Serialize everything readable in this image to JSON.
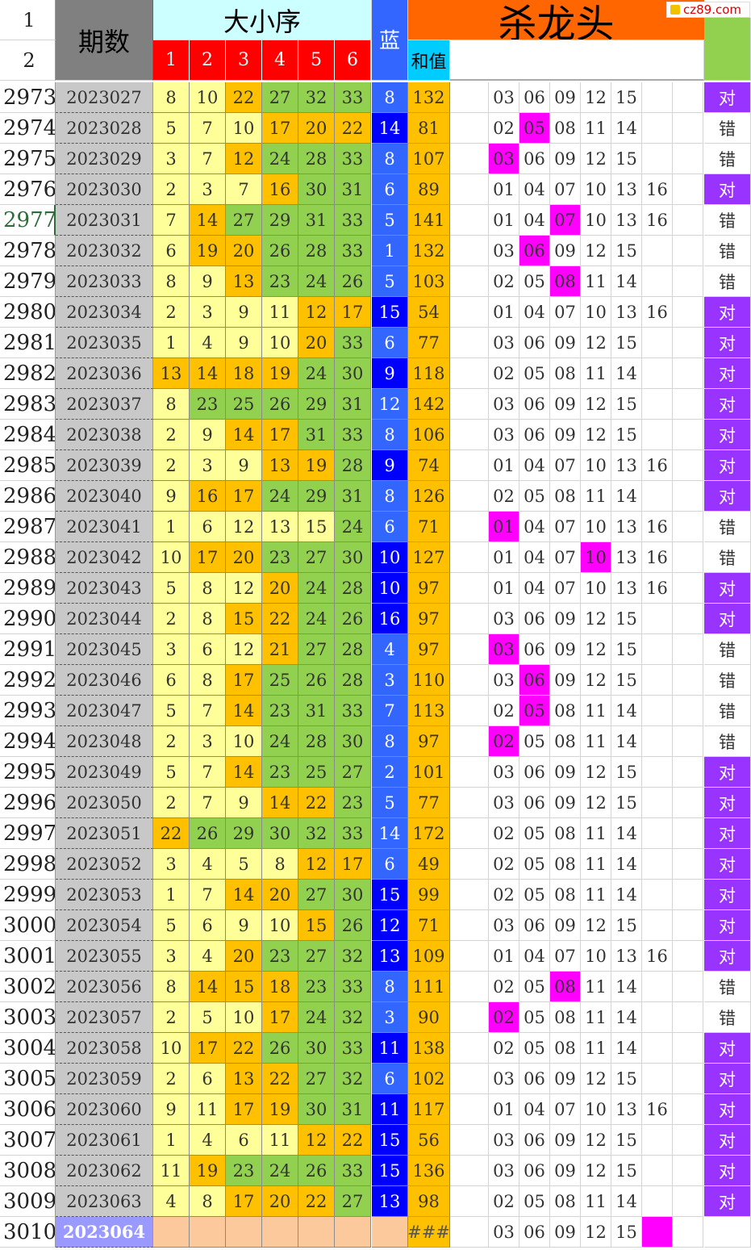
{
  "logo": {
    "text": "cz89.com"
  },
  "header": {
    "row1": "1",
    "row2": "2",
    "period": "期数",
    "order": "大小序",
    "positions": [
      "1",
      "2",
      "3",
      "4",
      "5",
      "6"
    ],
    "blue": "蓝",
    "sum": "和值",
    "kill": "杀龙头"
  },
  "colors": {
    "light_yellow": "#ffff99",
    "orange": "#ffc000",
    "green": "#92d050",
    "blue_light": "#3366ff",
    "blue_dark": "#0000ff",
    "magenta": "#ff00ff",
    "purple": "#9933ff",
    "header_cyan": "#ccffff",
    "header_red": "#ff0000",
    "header_orange": "#ff6600",
    "header_blue_sum": "#00ccff",
    "header_green": "#92d050",
    "peach": "#fbc99b"
  },
  "rows": [
    {
      "n": "2973",
      "period": "2023027",
      "nums": [
        "8",
        "10",
        "22",
        "27",
        "32",
        "33"
      ],
      "numc": [
        "y",
        "y",
        "o",
        "g",
        "g",
        "g"
      ],
      "blue": "8",
      "bluec": "l",
      "sum": "132",
      "kill": [
        "03",
        "06",
        "09",
        "12",
        "15",
        "",
        ""
      ],
      "hl": -1,
      "res": "对"
    },
    {
      "n": "2974",
      "period": "2023028",
      "nums": [
        "5",
        "7",
        "10",
        "17",
        "20",
        "22"
      ],
      "numc": [
        "y",
        "y",
        "y",
        "o",
        "o",
        "o"
      ],
      "blue": "14",
      "bluec": "d",
      "sum": "81",
      "kill": [
        "02",
        "05",
        "08",
        "11",
        "14",
        "",
        ""
      ],
      "hl": 1,
      "res": "错"
    },
    {
      "n": "2975",
      "period": "2023029",
      "nums": [
        "3",
        "7",
        "12",
        "24",
        "28",
        "33"
      ],
      "numc": [
        "y",
        "y",
        "o",
        "g",
        "g",
        "g"
      ],
      "blue": "8",
      "bluec": "l",
      "sum": "107",
      "kill": [
        "03",
        "06",
        "09",
        "12",
        "15",
        "",
        ""
      ],
      "hl": 0,
      "res": "错"
    },
    {
      "n": "2976",
      "period": "2023030",
      "nums": [
        "2",
        "3",
        "7",
        "16",
        "30",
        "31"
      ],
      "numc": [
        "y",
        "y",
        "y",
        "o",
        "g",
        "g"
      ],
      "blue": "6",
      "bluec": "l",
      "sum": "89",
      "kill": [
        "01",
        "04",
        "07",
        "10",
        "13",
        "16",
        ""
      ],
      "hl": -1,
      "res": "对"
    },
    {
      "n": "2977",
      "period": "2023031",
      "nums": [
        "7",
        "14",
        "27",
        "29",
        "31",
        "33"
      ],
      "numc": [
        "y",
        "o",
        "g",
        "g",
        "g",
        "g"
      ],
      "blue": "5",
      "bluec": "l",
      "sum": "141",
      "kill": [
        "01",
        "04",
        "07",
        "10",
        "13",
        "16",
        ""
      ],
      "hl": 2,
      "res": "错"
    },
    {
      "n": "2978",
      "period": "2023032",
      "nums": [
        "6",
        "19",
        "20",
        "26",
        "28",
        "33"
      ],
      "numc": [
        "y",
        "o",
        "o",
        "g",
        "g",
        "g"
      ],
      "blue": "1",
      "bluec": "l",
      "sum": "132",
      "kill": [
        "03",
        "06",
        "09",
        "12",
        "15",
        "",
        ""
      ],
      "hl": 1,
      "res": "错"
    },
    {
      "n": "2979",
      "period": "2023033",
      "nums": [
        "8",
        "9",
        "13",
        "23",
        "24",
        "26"
      ],
      "numc": [
        "y",
        "y",
        "o",
        "g",
        "g",
        "g"
      ],
      "blue": "5",
      "bluec": "l",
      "sum": "103",
      "kill": [
        "02",
        "05",
        "08",
        "11",
        "14",
        "",
        ""
      ],
      "hl": 2,
      "res": "错"
    },
    {
      "n": "2980",
      "period": "2023034",
      "nums": [
        "2",
        "3",
        "9",
        "11",
        "12",
        "17"
      ],
      "numc": [
        "y",
        "y",
        "y",
        "y",
        "o",
        "o"
      ],
      "blue": "15",
      "bluec": "d",
      "sum": "54",
      "kill": [
        "01",
        "04",
        "07",
        "10",
        "13",
        "16",
        ""
      ],
      "hl": -1,
      "res": "对"
    },
    {
      "n": "2981",
      "period": "2023035",
      "nums": [
        "1",
        "4",
        "9",
        "10",
        "20",
        "33"
      ],
      "numc": [
        "y",
        "y",
        "y",
        "y",
        "o",
        "g"
      ],
      "blue": "6",
      "bluec": "l",
      "sum": "77",
      "kill": [
        "03",
        "06",
        "09",
        "12",
        "15",
        "",
        ""
      ],
      "hl": -1,
      "res": "对"
    },
    {
      "n": "2982",
      "period": "2023036",
      "nums": [
        "13",
        "14",
        "18",
        "19",
        "24",
        "30"
      ],
      "numc": [
        "o",
        "o",
        "o",
        "o",
        "g",
        "g"
      ],
      "blue": "9",
      "bluec": "d",
      "sum": "118",
      "kill": [
        "02",
        "05",
        "08",
        "11",
        "14",
        "",
        ""
      ],
      "hl": -1,
      "res": "对"
    },
    {
      "n": "2983",
      "period": "2023037",
      "nums": [
        "8",
        "23",
        "25",
        "26",
        "29",
        "31"
      ],
      "numc": [
        "y",
        "g",
        "g",
        "g",
        "g",
        "g"
      ],
      "blue": "12",
      "bluec": "l",
      "sum": "142",
      "kill": [
        "03",
        "06",
        "09",
        "12",
        "15",
        "",
        ""
      ],
      "hl": -1,
      "res": "对"
    },
    {
      "n": "2984",
      "period": "2023038",
      "nums": [
        "2",
        "9",
        "14",
        "17",
        "31",
        "33"
      ],
      "numc": [
        "y",
        "y",
        "o",
        "o",
        "g",
        "g"
      ],
      "blue": "8",
      "bluec": "l",
      "sum": "106",
      "kill": [
        "03",
        "06",
        "09",
        "12",
        "15",
        "",
        ""
      ],
      "hl": -1,
      "res": "对"
    },
    {
      "n": "2985",
      "period": "2023039",
      "nums": [
        "2",
        "3",
        "9",
        "13",
        "19",
        "28"
      ],
      "numc": [
        "y",
        "y",
        "y",
        "o",
        "o",
        "g"
      ],
      "blue": "9",
      "bluec": "d",
      "sum": "74",
      "kill": [
        "01",
        "04",
        "07",
        "10",
        "13",
        "16",
        ""
      ],
      "hl": -1,
      "res": "对"
    },
    {
      "n": "2986",
      "period": "2023040",
      "nums": [
        "9",
        "16",
        "17",
        "24",
        "29",
        "31"
      ],
      "numc": [
        "y",
        "o",
        "o",
        "g",
        "g",
        "g"
      ],
      "blue": "8",
      "bluec": "l",
      "sum": "126",
      "kill": [
        "02",
        "05",
        "08",
        "11",
        "14",
        "",
        ""
      ],
      "hl": -1,
      "res": "对"
    },
    {
      "n": "2987",
      "period": "2023041",
      "nums": [
        "1",
        "6",
        "12",
        "13",
        "15",
        "24"
      ],
      "numc": [
        "y",
        "y",
        "y",
        "y",
        "y",
        "g"
      ],
      "blue": "6",
      "bluec": "l",
      "sum": "71",
      "kill": [
        "01",
        "04",
        "07",
        "10",
        "13",
        "16",
        ""
      ],
      "hl": 0,
      "res": "错"
    },
    {
      "n": "2988",
      "period": "2023042",
      "nums": [
        "10",
        "17",
        "20",
        "23",
        "27",
        "30"
      ],
      "numc": [
        "y",
        "o",
        "o",
        "g",
        "g",
        "g"
      ],
      "blue": "10",
      "bluec": "d",
      "sum": "127",
      "kill": [
        "01",
        "04",
        "07",
        "10",
        "13",
        "16",
        ""
      ],
      "hl": 3,
      "res": "错"
    },
    {
      "n": "2989",
      "period": "2023043",
      "nums": [
        "5",
        "8",
        "12",
        "20",
        "24",
        "28"
      ],
      "numc": [
        "y",
        "y",
        "y",
        "o",
        "g",
        "g"
      ],
      "blue": "10",
      "bluec": "d",
      "sum": "97",
      "kill": [
        "01",
        "04",
        "07",
        "10",
        "13",
        "16",
        ""
      ],
      "hl": -1,
      "res": "对"
    },
    {
      "n": "2990",
      "period": "2023044",
      "nums": [
        "2",
        "8",
        "15",
        "22",
        "24",
        "26"
      ],
      "numc": [
        "y",
        "y",
        "o",
        "o",
        "g",
        "g"
      ],
      "blue": "16",
      "bluec": "d",
      "sum": "97",
      "kill": [
        "03",
        "06",
        "09",
        "12",
        "15",
        "",
        ""
      ],
      "hl": -1,
      "res": "对"
    },
    {
      "n": "2991",
      "period": "2023045",
      "nums": [
        "3",
        "6",
        "12",
        "21",
        "27",
        "28"
      ],
      "numc": [
        "y",
        "y",
        "y",
        "o",
        "g",
        "g"
      ],
      "blue": "4",
      "bluec": "l",
      "sum": "97",
      "kill": [
        "03",
        "06",
        "09",
        "12",
        "15",
        "",
        ""
      ],
      "hl": 0,
      "res": "错"
    },
    {
      "n": "2992",
      "period": "2023046",
      "nums": [
        "6",
        "8",
        "17",
        "25",
        "26",
        "28"
      ],
      "numc": [
        "y",
        "y",
        "o",
        "g",
        "g",
        "g"
      ],
      "blue": "3",
      "bluec": "l",
      "sum": "110",
      "kill": [
        "03",
        "06",
        "09",
        "12",
        "15",
        "",
        ""
      ],
      "hl": 1,
      "res": "错"
    },
    {
      "n": "2993",
      "period": "2023047",
      "nums": [
        "5",
        "7",
        "14",
        "23",
        "31",
        "33"
      ],
      "numc": [
        "y",
        "y",
        "o",
        "g",
        "g",
        "g"
      ],
      "blue": "7",
      "bluec": "l",
      "sum": "113",
      "kill": [
        "02",
        "05",
        "08",
        "11",
        "14",
        "",
        ""
      ],
      "hl": 1,
      "res": "错"
    },
    {
      "n": "2994",
      "period": "2023048",
      "nums": [
        "2",
        "3",
        "10",
        "24",
        "28",
        "30"
      ],
      "numc": [
        "y",
        "y",
        "y",
        "g",
        "g",
        "g"
      ],
      "blue": "8",
      "bluec": "l",
      "sum": "97",
      "kill": [
        "02",
        "05",
        "08",
        "11",
        "14",
        "",
        ""
      ],
      "hl": 0,
      "res": "错"
    },
    {
      "n": "2995",
      "period": "2023049",
      "nums": [
        "5",
        "7",
        "14",
        "23",
        "25",
        "27"
      ],
      "numc": [
        "y",
        "y",
        "o",
        "g",
        "g",
        "g"
      ],
      "blue": "2",
      "bluec": "l",
      "sum": "101",
      "kill": [
        "03",
        "06",
        "09",
        "12",
        "15",
        "",
        ""
      ],
      "hl": -1,
      "res": "对"
    },
    {
      "n": "2996",
      "period": "2023050",
      "nums": [
        "2",
        "7",
        "9",
        "14",
        "22",
        "23"
      ],
      "numc": [
        "y",
        "y",
        "y",
        "o",
        "o",
        "g"
      ],
      "blue": "5",
      "bluec": "l",
      "sum": "77",
      "kill": [
        "03",
        "06",
        "09",
        "12",
        "15",
        "",
        ""
      ],
      "hl": -1,
      "res": "对"
    },
    {
      "n": "2997",
      "period": "2023051",
      "nums": [
        "22",
        "26",
        "29",
        "30",
        "32",
        "33"
      ],
      "numc": [
        "o",
        "g",
        "g",
        "g",
        "g",
        "g"
      ],
      "blue": "14",
      "bluec": "l",
      "sum": "172",
      "kill": [
        "02",
        "05",
        "08",
        "11",
        "14",
        "",
        ""
      ],
      "hl": -1,
      "res": "对"
    },
    {
      "n": "2998",
      "period": "2023052",
      "nums": [
        "3",
        "4",
        "5",
        "8",
        "12",
        "17"
      ],
      "numc": [
        "y",
        "y",
        "y",
        "y",
        "o",
        "o"
      ],
      "blue": "6",
      "bluec": "l",
      "sum": "49",
      "kill": [
        "02",
        "05",
        "08",
        "11",
        "14",
        "",
        ""
      ],
      "hl": -1,
      "res": "对"
    },
    {
      "n": "2999",
      "period": "2023053",
      "nums": [
        "1",
        "7",
        "14",
        "20",
        "27",
        "30"
      ],
      "numc": [
        "y",
        "y",
        "o",
        "o",
        "g",
        "g"
      ],
      "blue": "15",
      "bluec": "d",
      "sum": "99",
      "kill": [
        "02",
        "05",
        "08",
        "11",
        "14",
        "",
        ""
      ],
      "hl": -1,
      "res": "对"
    },
    {
      "n": "3000",
      "period": "2023054",
      "nums": [
        "5",
        "6",
        "9",
        "10",
        "15",
        "26"
      ],
      "numc": [
        "y",
        "y",
        "y",
        "y",
        "o",
        "g"
      ],
      "blue": "12",
      "bluec": "d",
      "sum": "71",
      "kill": [
        "03",
        "06",
        "09",
        "12",
        "15",
        "",
        ""
      ],
      "hl": -1,
      "res": "对"
    },
    {
      "n": "3001",
      "period": "2023055",
      "nums": [
        "3",
        "4",
        "20",
        "23",
        "27",
        "32"
      ],
      "numc": [
        "y",
        "y",
        "o",
        "g",
        "g",
        "g"
      ],
      "blue": "13",
      "bluec": "d",
      "sum": "109",
      "kill": [
        "01",
        "04",
        "07",
        "10",
        "13",
        "16",
        ""
      ],
      "hl": -1,
      "res": "对"
    },
    {
      "n": "3002",
      "period": "2023056",
      "nums": [
        "8",
        "14",
        "15",
        "18",
        "23",
        "33"
      ],
      "numc": [
        "y",
        "o",
        "o",
        "o",
        "g",
        "g"
      ],
      "blue": "8",
      "bluec": "l",
      "sum": "111",
      "kill": [
        "02",
        "05",
        "08",
        "11",
        "14",
        "",
        ""
      ],
      "hl": 2,
      "res": "错"
    },
    {
      "n": "3003",
      "period": "2023057",
      "nums": [
        "2",
        "5",
        "10",
        "17",
        "24",
        "32"
      ],
      "numc": [
        "y",
        "y",
        "y",
        "o",
        "g",
        "g"
      ],
      "blue": "3",
      "bluec": "l",
      "sum": "90",
      "kill": [
        "02",
        "05",
        "08",
        "11",
        "14",
        "",
        ""
      ],
      "hl": 0,
      "res": "错"
    },
    {
      "n": "3004",
      "period": "2023058",
      "nums": [
        "10",
        "17",
        "22",
        "26",
        "30",
        "33"
      ],
      "numc": [
        "y",
        "o",
        "o",
        "g",
        "g",
        "g"
      ],
      "blue": "11",
      "bluec": "d",
      "sum": "138",
      "kill": [
        "02",
        "05",
        "08",
        "11",
        "14",
        "",
        ""
      ],
      "hl": -1,
      "res": "对"
    },
    {
      "n": "3005",
      "period": "2023059",
      "nums": [
        "2",
        "6",
        "13",
        "22",
        "27",
        "32"
      ],
      "numc": [
        "y",
        "y",
        "o",
        "o",
        "g",
        "g"
      ],
      "blue": "6",
      "bluec": "l",
      "sum": "102",
      "kill": [
        "03",
        "06",
        "09",
        "12",
        "15",
        "",
        ""
      ],
      "hl": -1,
      "res": "对"
    },
    {
      "n": "3006",
      "period": "2023060",
      "nums": [
        "9",
        "11",
        "17",
        "19",
        "30",
        "31"
      ],
      "numc": [
        "y",
        "y",
        "o",
        "o",
        "g",
        "g"
      ],
      "blue": "11",
      "bluec": "d",
      "sum": "117",
      "kill": [
        "01",
        "04",
        "07",
        "10",
        "13",
        "16",
        ""
      ],
      "hl": -1,
      "res": "对"
    },
    {
      "n": "3007",
      "period": "2023061",
      "nums": [
        "1",
        "4",
        "6",
        "11",
        "12",
        "22"
      ],
      "numc": [
        "y",
        "y",
        "y",
        "y",
        "o",
        "o"
      ],
      "blue": "15",
      "bluec": "d",
      "sum": "56",
      "kill": [
        "03",
        "06",
        "09",
        "12",
        "15",
        "",
        ""
      ],
      "hl": -1,
      "res": "对"
    },
    {
      "n": "3008",
      "period": "2023062",
      "nums": [
        "11",
        "19",
        "23",
        "24",
        "26",
        "33"
      ],
      "numc": [
        "y",
        "o",
        "g",
        "g",
        "g",
        "g"
      ],
      "blue": "15",
      "bluec": "d",
      "sum": "136",
      "kill": [
        "03",
        "06",
        "09",
        "12",
        "15",
        "",
        ""
      ],
      "hl": -1,
      "res": "对"
    },
    {
      "n": "3009",
      "period": "2023063",
      "nums": [
        "4",
        "8",
        "17",
        "20",
        "22",
        "27"
      ],
      "numc": [
        "y",
        "y",
        "o",
        "o",
        "o",
        "g"
      ],
      "blue": "13",
      "bluec": "d",
      "sum": "98",
      "kill": [
        "02",
        "05",
        "08",
        "11",
        "14",
        "",
        ""
      ],
      "hl": -1,
      "res": "对"
    },
    {
      "n": "3010",
      "period": "2023064",
      "nums": [
        "",
        "",
        "",
        "",
        "",
        ""
      ],
      "numc": [
        "p",
        "p",
        "p",
        "p",
        "p",
        "p"
      ],
      "blue": "",
      "bluec": "p",
      "sum": "###",
      "kill": [
        "03",
        "06",
        "09",
        "12",
        "15",
        "",
        ""
      ],
      "hl": 5,
      "res": ""
    }
  ]
}
